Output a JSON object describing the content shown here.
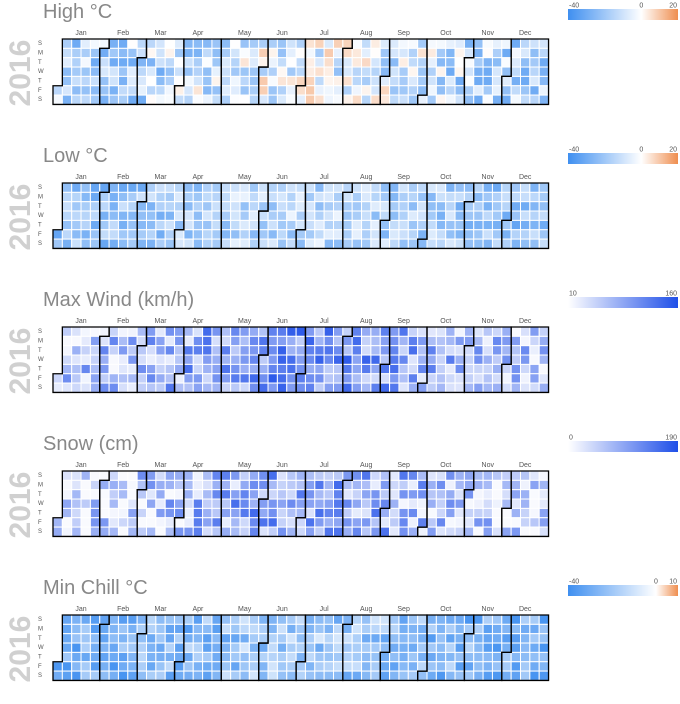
{
  "weekday_labels": [
    "S",
    "M",
    "T",
    "W",
    "T",
    "F",
    "S"
  ],
  "chart_data": [
    {
      "type": "heatmap",
      "title": "High °C",
      "year": "2016",
      "months": [
        "Jan",
        "Feb",
        "Mar",
        "Apr",
        "May",
        "Jun",
        "Jul",
        "Aug",
        "Sep",
        "Oct",
        "Nov",
        "Dec"
      ],
      "legend": {
        "min": -40,
        "mid": 0,
        "max": 20,
        "ticks": [
          "-40",
          "0",
          "20"
        ],
        "colors": [
          "#3f8ff0",
          "#ffffff",
          "#ef8e4f"
        ]
      },
      "value_range": [
        -30,
        12
      ],
      "value_center": -12
    },
    {
      "type": "heatmap",
      "title": "Low °C",
      "year": "2016",
      "months": [
        "Jan",
        "Feb",
        "Mar",
        "Apr",
        "May",
        "Jun",
        "Jul",
        "Aug",
        "Sep",
        "Oct",
        "Nov",
        "Dec"
      ],
      "legend": {
        "min": -40,
        "mid": 0,
        "max": 20,
        "ticks": [
          "-40",
          "0",
          "20"
        ],
        "colors": [
          "#3f8ff0",
          "#ffffff",
          "#ef8e4f"
        ]
      },
      "value_range": [
        -32,
        -4
      ],
      "value_center": -18
    },
    {
      "type": "heatmap",
      "title": "Max Wind (km/h)",
      "year": "2016",
      "months": [
        "Jan",
        "Feb",
        "Mar",
        "Apr",
        "May",
        "Jun",
        "Jul",
        "Aug",
        "Sep",
        "Oct",
        "Nov",
        "Dec"
      ],
      "legend": {
        "min": 10,
        "max": 160,
        "ticks": [
          "10",
          "160"
        ],
        "colors": [
          "#ffffff",
          "#1f4fe8"
        ]
      },
      "value_range": [
        15,
        150
      ],
      "value_center": 78
    },
    {
      "type": "heatmap",
      "title": "Snow (cm)",
      "year": "2016",
      "months": [
        "Jan",
        "Feb",
        "Mar",
        "Apr",
        "May",
        "Jun",
        "Jul",
        "Aug",
        "Sep",
        "Oct",
        "Nov",
        "Dec"
      ],
      "legend": {
        "min": 0,
        "max": 190,
        "ticks": [
          "0",
          "190"
        ],
        "colors": [
          "#ffffff",
          "#1f4fe8"
        ]
      },
      "value_range": [
        5,
        180
      ],
      "value_center": 70
    },
    {
      "type": "heatmap",
      "title": "Min Chill °C",
      "year": "2016",
      "months": [
        "Jan",
        "Feb",
        "Mar",
        "Apr",
        "May",
        "Jun",
        "Jul",
        "Aug",
        "Sep",
        "Oct",
        "Nov",
        "Dec"
      ],
      "legend": {
        "min": -40,
        "mid": 0,
        "max": 10,
        "ticks": [
          "-40",
          "0",
          "10"
        ],
        "colors": [
          "#3f8ff0",
          "#ffffff",
          "#ef8e4f"
        ]
      },
      "value_range": [
        -38,
        -8
      ],
      "value_center": -24
    }
  ]
}
